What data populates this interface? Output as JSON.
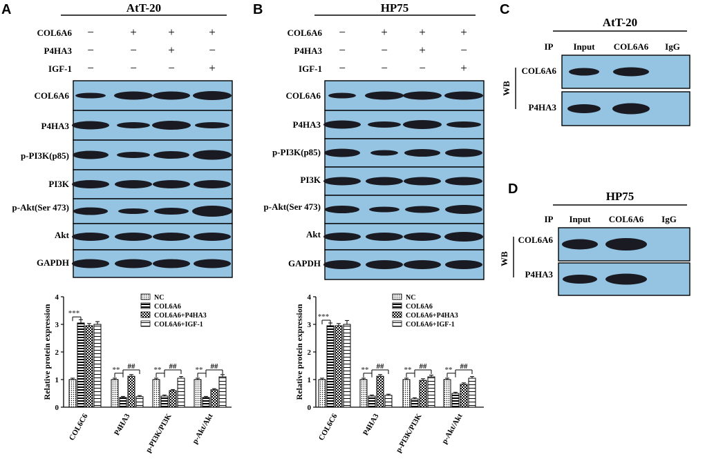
{
  "panelA": {
    "label": "A",
    "title": "AtT-20",
    "conditions": [
      {
        "name": "COL6A6",
        "signs": [
          "−",
          "+",
          "+",
          "+"
        ]
      },
      {
        "name": "P4HA3",
        "signs": [
          "−",
          "−",
          "+",
          "−"
        ]
      },
      {
        "name": "IGF-1",
        "signs": [
          "−",
          "−",
          "−",
          "+"
        ]
      }
    ],
    "blots": [
      "COL6A6",
      "P4HA3",
      "p-PI3K(p85)",
      "PI3K",
      "p-Akt(Ser 473)",
      "Akt",
      "GAPDH"
    ]
  },
  "panelB": {
    "label": "B",
    "title": "HP75",
    "conditions": [
      {
        "name": "COL6A6",
        "signs": [
          "−",
          "+",
          "+",
          "+"
        ]
      },
      {
        "name": "P4HA3",
        "signs": [
          "−",
          "−",
          "+",
          "−"
        ]
      },
      {
        "name": "IGF-1",
        "signs": [
          "−",
          "−",
          "−",
          "+"
        ]
      }
    ],
    "blots": [
      "COL6A6",
      "P4HA3",
      "p-PI3K(p85)",
      "PI3K",
      "p-Akt(Ser 473)",
      "Akt",
      "GAPDH"
    ]
  },
  "panelC": {
    "label": "C",
    "title": "AtT-20",
    "ip_label": "IP",
    "lanes": [
      "Input",
      "COL6A6",
      "IgG"
    ],
    "wb_label": "WB",
    "blots": [
      "COL6A6",
      "P4HA3"
    ]
  },
  "panelD": {
    "label": "D",
    "title": "HP75",
    "ip_label": "IP",
    "lanes": [
      "Input",
      "COL6A6",
      "IgG"
    ],
    "wb_label": "WB",
    "blots": [
      "COL6A6",
      "P4HA3"
    ]
  },
  "chart_data": [
    {
      "type": "bar",
      "panel": "A",
      "categories": [
        "COL6C6",
        "P4HA3",
        "p-PI3K/PI3K",
        "p-Akt/Akt"
      ],
      "series": [
        {
          "name": "NC",
          "values": [
            1.0,
            1.0,
            1.0,
            1.0
          ],
          "errors": [
            0.05,
            0.05,
            0.05,
            0.05
          ]
        },
        {
          "name": "COL6A6",
          "values": [
            3.05,
            0.35,
            0.4,
            0.35
          ],
          "errors": [
            0.12,
            0.04,
            0.04,
            0.04
          ]
        },
        {
          "name": "COL6A6+P4HA3",
          "values": [
            2.95,
            1.12,
            0.6,
            0.63
          ],
          "errors": [
            0.08,
            0.06,
            0.04,
            0.04
          ]
        },
        {
          "name": "COL6A6+IGF-1",
          "values": [
            3.0,
            0.38,
            1.05,
            1.1
          ],
          "errors": [
            0.1,
            0.04,
            0.06,
            0.08
          ]
        }
      ],
      "ylabel": "Relative protein expression",
      "yticks": [
        0,
        1,
        2,
        3,
        4
      ],
      "ylim": [
        0,
        4
      ],
      "annotations": [
        {
          "category": "COL6C6",
          "text": "***"
        },
        {
          "category": "P4HA3",
          "text": "**"
        },
        {
          "category": "P4HA3",
          "text": "##"
        },
        {
          "category": "p-PI3K/PI3K",
          "text": "**"
        },
        {
          "category": "p-PI3K/PI3K",
          "text": "##"
        },
        {
          "category": "p-Akt/Akt",
          "text": "**"
        },
        {
          "category": "p-Akt/Akt",
          "text": "##"
        }
      ]
    },
    {
      "type": "bar",
      "panel": "B",
      "categories": [
        "COL6C6",
        "P4HA3",
        "p-PI3K/PI3K",
        "p-Akt/Akt"
      ],
      "series": [
        {
          "name": "NC",
          "values": [
            1.0,
            1.0,
            1.0,
            1.0
          ],
          "errors": [
            0.05,
            0.05,
            0.05,
            0.05
          ]
        },
        {
          "name": "COL6A6",
          "values": [
            2.95,
            0.4,
            0.3,
            0.5
          ],
          "errors": [
            0.1,
            0.04,
            0.04,
            0.04
          ]
        },
        {
          "name": "COL6A6+P4HA3",
          "values": [
            2.95,
            1.12,
            0.97,
            0.83
          ],
          "errors": [
            0.08,
            0.06,
            0.06,
            0.05
          ]
        },
        {
          "name": "COL6A6+IGF-1",
          "values": [
            3.0,
            0.43,
            1.1,
            1.05
          ],
          "errors": [
            0.14,
            0.04,
            0.06,
            0.06
          ]
        }
      ],
      "ylabel": "Relative protein expression",
      "yticks": [
        0,
        1,
        2,
        3,
        4
      ],
      "ylim": [
        0,
        4
      ],
      "annotations": [
        {
          "category": "COL6C6",
          "text": "***"
        },
        {
          "category": "P4HA3",
          "text": "**"
        },
        {
          "category": "P4HA3",
          "text": "##"
        },
        {
          "category": "p-PI3K/PI3K",
          "text": "**"
        },
        {
          "category": "p-PI3K/PI3K",
          "text": "##"
        },
        {
          "category": "p-Akt/Akt",
          "text": "**"
        },
        {
          "category": "p-Akt/Akt",
          "text": "##"
        }
      ]
    }
  ],
  "colors": {
    "blot_bg": "#94c4e2",
    "band": "#1a1a22",
    "sig_star": "#555555"
  }
}
